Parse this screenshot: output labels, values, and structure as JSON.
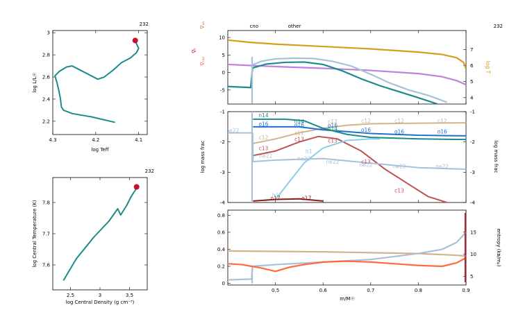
{
  "model_number": "232",
  "chart_data": [
    {
      "id": "hr",
      "type": "line",
      "xlabel": "log Teff",
      "ylabel": "log L/L☉",
      "xlim": [
        4.3,
        4.08
      ],
      "ylim": [
        2.08,
        3.02
      ],
      "xticks": [
        4.3,
        4.2,
        4.1
      ],
      "xticklabels": [
        "4.3",
        "4.2",
        "4.1"
      ],
      "yticks": [
        2.2,
        2.4,
        2.6,
        2.8,
        3.0
      ],
      "yticklabels": [
        "2.2",
        "2.4",
        "2.6",
        "2.8",
        "3"
      ],
      "color": "#1a8a8a",
      "marker_color": "#c8102e",
      "points": [
        [
          4.155,
          2.19
        ],
        [
          4.21,
          2.24
        ],
        [
          4.255,
          2.27
        ],
        [
          4.275,
          2.3
        ],
        [
          4.28,
          2.33
        ],
        [
          4.282,
          2.4
        ],
        [
          4.286,
          2.48
        ],
        [
          4.291,
          2.56
        ],
        [
          4.295,
          2.61
        ],
        [
          4.285,
          2.65
        ],
        [
          4.268,
          2.69
        ],
        [
          4.255,
          2.7
        ],
        [
          4.235,
          2.66
        ],
        [
          4.21,
          2.61
        ],
        [
          4.195,
          2.58
        ],
        [
          4.18,
          2.6
        ],
        [
          4.16,
          2.66
        ],
        [
          4.14,
          2.73
        ],
        [
          4.12,
          2.77
        ],
        [
          4.105,
          2.82
        ],
        [
          4.1,
          2.86
        ],
        [
          4.105,
          2.9
        ],
        [
          4.108,
          2.93
        ]
      ],
      "current": [
        4.108,
        2.93
      ]
    },
    {
      "id": "center",
      "type": "line",
      "xlabel": "log Central Density (g cm⁻³)",
      "ylabel": "log Central Temperature (K)",
      "xlim": [
        2.2,
        3.8
      ],
      "ylim": [
        7.52,
        7.88
      ],
      "xticks": [
        2.5,
        3.0,
        3.5
      ],
      "xticklabels": [
        "2.5",
        "3",
        "3.5"
      ],
      "yticks": [
        7.6,
        7.7,
        7.8
      ],
      "yticklabels": [
        "7.6",
        "7.7",
        "7.8"
      ],
      "color": "#1a8a8a",
      "marker_color": "#c8102e",
      "points": [
        [
          2.38,
          7.55
        ],
        [
          2.6,
          7.62
        ],
        [
          2.9,
          7.69
        ],
        [
          3.15,
          7.74
        ],
        [
          3.3,
          7.78
        ],
        [
          3.35,
          7.76
        ],
        [
          3.45,
          7.79
        ],
        [
          3.53,
          7.82
        ],
        [
          3.6,
          7.84
        ],
        [
          3.62,
          7.85
        ]
      ],
      "current": [
        3.62,
        7.85
      ]
    },
    {
      "id": "profile_top",
      "type": "line",
      "xlim": [
        0.4,
        0.9
      ],
      "ylim_left": [
        -9,
        12
      ],
      "ylim_right": [
        3.6,
        8.2
      ],
      "yticks_left": [
        -5,
        0,
        5,
        10
      ],
      "yticklabels_left": [
        "-5",
        "0",
        "5",
        "10"
      ],
      "yticks_right": [
        4,
        5,
        6,
        7
      ],
      "yticklabels_right": [
        "4",
        "5",
        "6",
        "7"
      ],
      "ylabels_left": [
        {
          "text": "log ρ",
          "color": "#c080e0"
        },
        {
          "text": "log εₙᵤᶜ",
          "color": "#1a8a8a"
        },
        {
          "text": "log εₘₐₓ",
          "color": "#a8c0d8"
        }
      ],
      "ylabel_right": {
        "text": "log T",
        "color": "#d4a017"
      },
      "zone_labels": [
        "cno",
        "other"
      ],
      "zone_label_x": [
        0.455,
        0.54
      ],
      "series": [
        {
          "color": "#d4a017",
          "axis": "right",
          "x": [
            0.4,
            0.45,
            0.5,
            0.6,
            0.7,
            0.8,
            0.85,
            0.88,
            0.895,
            0.9
          ],
          "y": [
            7.6,
            7.45,
            7.35,
            7.2,
            7.05,
            6.85,
            6.7,
            6.5,
            6.2,
            5.8
          ]
        },
        {
          "color": "#c080e0",
          "axis": "left",
          "x": [
            0.4,
            0.45,
            0.5,
            0.6,
            0.7,
            0.8,
            0.85,
            0.88,
            0.9
          ],
          "y": [
            2.3,
            2.0,
            1.7,
            1.2,
            0.6,
            -0.3,
            -1.2,
            -2.3,
            -3.5
          ]
        },
        {
          "color": "#a8c0d8",
          "axis": "left",
          "x": [
            0.452,
            0.47,
            0.5,
            0.54,
            0.58,
            0.62,
            0.66,
            0.7,
            0.74,
            0.78,
            0.82,
            0.86
          ],
          "y": [
            2.2,
            3.2,
            3.9,
            4.1,
            4.0,
            3.2,
            1.8,
            -0.5,
            -3.0,
            -5.0,
            -6.5,
            -8.5
          ]
        },
        {
          "color": "#1a8a8a",
          "axis": "left",
          "x": [
            0.4,
            0.448,
            0.452,
            0.48,
            0.52,
            0.56,
            0.6,
            0.64,
            0.68,
            0.72,
            0.76,
            0.8,
            0.84
          ],
          "y": [
            -4.0,
            -4.3,
            1.3,
            2.4,
            2.9,
            3.0,
            2.3,
            0.5,
            -1.8,
            -3.8,
            -5.5,
            -7.2,
            -9.0
          ]
        },
        {
          "color": "#a8c0d8",
          "axis": "left",
          "x": [
            0.451,
            0.451
          ],
          "y": [
            -8.8,
            4.5
          ]
        }
      ]
    },
    {
      "id": "profile_mid",
      "type": "line",
      "xlim": [
        0.4,
        0.9
      ],
      "ylim": [
        -4,
        -1
      ],
      "yticks": [
        -4,
        -3,
        -2,
        -1
      ],
      "yticklabels": [
        "-4",
        "-3",
        "-2",
        "-1"
      ],
      "ylabel_left": "log mass frac",
      "ylabel_right": "log mass frac",
      "series": [
        {
          "name": "c12",
          "color": "#d2b48c",
          "x": [
            0.453,
            0.5,
            0.55,
            0.6,
            0.65,
            0.7,
            0.8,
            0.9
          ],
          "y": [
            -2.05,
            -1.9,
            -1.7,
            -1.55,
            -1.45,
            -1.4,
            -1.38,
            -1.37
          ]
        },
        {
          "name": "o16",
          "color": "#1f6fd1",
          "x": [
            0.453,
            0.55,
            0.6,
            0.7,
            0.8,
            0.9
          ],
          "y": [
            -1.5,
            -1.5,
            -1.6,
            -1.72,
            -1.78,
            -1.8
          ]
        },
        {
          "name": "n14",
          "color": "#1a8a8a",
          "x": [
            0.453,
            0.52,
            0.56,
            0.6,
            0.65,
            0.7,
            0.8,
            0.9
          ],
          "y": [
            -1.25,
            -1.25,
            -1.3,
            -1.55,
            -1.75,
            -1.85,
            -1.9,
            -1.92
          ]
        },
        {
          "name": "c13",
          "color": "#c05050",
          "x": [
            0.453,
            0.5,
            0.55,
            0.59,
            0.63,
            0.68,
            0.73,
            0.78,
            0.82,
            0.86
          ],
          "y": [
            -2.45,
            -2.3,
            -2.0,
            -1.82,
            -1.9,
            -2.3,
            -2.9,
            -3.4,
            -3.8,
            -4.0
          ]
        },
        {
          "name": "ne22",
          "color": "#a8c0d8",
          "x": [
            0.4,
            0.452,
            0.453,
            0.5,
            0.6,
            0.7,
            0.8,
            0.9
          ],
          "y": [
            -1.7,
            -1.7,
            -2.65,
            -2.6,
            -2.55,
            -2.7,
            -2.85,
            -2.9
          ]
        },
        {
          "name": "h1",
          "color": "#87ceeb",
          "x": [
            0.5,
            0.53,
            0.56,
            0.6,
            0.65,
            0.7,
            0.72
          ],
          "y": [
            -3.9,
            -3.3,
            -2.7,
            -2.2,
            -1.95,
            -1.9,
            -1.9
          ]
        },
        {
          "name": "o17",
          "color": "#8b1a1a",
          "x": [
            0.453,
            0.5,
            0.55,
            0.6
          ],
          "y": [
            -3.95,
            -3.9,
            -3.88,
            -3.95
          ]
        },
        {
          "name": "",
          "color": "#a8c0d8",
          "x": [
            0.451,
            0.451
          ],
          "y": [
            -4.0,
            -1.0
          ]
        }
      ],
      "labels": [
        {
          "text": "n14",
          "x": 0.475,
          "y": -1.12,
          "color": "#1a8a8a"
        },
        {
          "text": "o16",
          "x": 0.475,
          "y": -1.4,
          "color": "#1f6fd1"
        },
        {
          "text": "ne22",
          "x": 0.41,
          "y": -1.62,
          "color": "#a8c0d8"
        },
        {
          "text": "c12",
          "x": 0.475,
          "y": -1.85,
          "color": "#d2b48c"
        },
        {
          "text": "c13",
          "x": 0.475,
          "y": -2.2,
          "color": "#c05050"
        },
        {
          "text": "ne22",
          "x": 0.48,
          "y": -2.45,
          "color": "#a8c0d8"
        },
        {
          "text": "n14",
          "x": 0.55,
          "y": -1.32,
          "color": "#1a8a8a"
        },
        {
          "text": "o16",
          "x": 0.55,
          "y": -1.43,
          "color": "#1f6fd1"
        },
        {
          "text": "c12",
          "x": 0.55,
          "y": -1.7,
          "color": "#d2b48c"
        },
        {
          "text": "c13",
          "x": 0.55,
          "y": -1.9,
          "color": "#c05050"
        },
        {
          "text": "h1",
          "x": 0.57,
          "y": -2.3,
          "color": "#87ceeb"
        },
        {
          "text": "ne22",
          "x": 0.56,
          "y": -2.55,
          "color": "#a8c0d8"
        },
        {
          "text": "h1",
          "x": 0.5,
          "y": -3.75,
          "color": "#87ceeb"
        },
        {
          "text": "o17",
          "x": 0.5,
          "y": -3.85,
          "color": "#8b1a1a"
        },
        {
          "text": "o17",
          "x": 0.565,
          "y": -3.85,
          "color": "#8b1a1a"
        },
        {
          "text": "n14",
          "x": 0.62,
          "y": -1.55,
          "color": "#1a8a8a"
        },
        {
          "text": "c12",
          "x": 0.62,
          "y": -1.32,
          "color": "#d2b48c"
        },
        {
          "text": "o16",
          "x": 0.62,
          "y": -1.45,
          "color": "#1f6fd1"
        },
        {
          "text": "c13",
          "x": 0.62,
          "y": -1.95,
          "color": "#c05050"
        },
        {
          "text": "ne22",
          "x": 0.62,
          "y": -2.65,
          "color": "#a8c0d8"
        },
        {
          "text": "c12",
          "x": 0.69,
          "y": -1.3,
          "color": "#d2b48c"
        },
        {
          "text": "o16",
          "x": 0.69,
          "y": -1.6,
          "color": "#1f6fd1"
        },
        {
          "text": "c13",
          "x": 0.69,
          "y": -2.65,
          "color": "#c05050"
        },
        {
          "text": "ne22",
          "x": 0.69,
          "y": -2.75,
          "color": "#a8c0d8"
        },
        {
          "text": "c12",
          "x": 0.76,
          "y": -1.3,
          "color": "#d2b48c"
        },
        {
          "text": "o16",
          "x": 0.76,
          "y": -1.65,
          "color": "#1f6fd1"
        },
        {
          "text": "ne22",
          "x": 0.76,
          "y": -2.8,
          "color": "#a8c0d8"
        },
        {
          "text": "c13",
          "x": 0.76,
          "y": -3.6,
          "color": "#c05050"
        },
        {
          "text": "c12",
          "x": 0.85,
          "y": -1.3,
          "color": "#d2b48c"
        },
        {
          "text": "o16",
          "x": 0.85,
          "y": -1.65,
          "color": "#1f6fd1"
        },
        {
          "text": "ne22",
          "x": 0.85,
          "y": -2.8,
          "color": "#a8c0d8"
        }
      ]
    },
    {
      "id": "profile_bot",
      "type": "line",
      "xlabel": "m/M☉",
      "xlim": [
        0.4,
        0.9
      ],
      "ylim": [
        -0.02,
        0.86
      ],
      "ylim_right": [
        3,
        20
      ],
      "xticks": [
        0.5,
        0.6,
        0.7,
        0.8,
        0.9
      ],
      "xticklabels": [
        "0.5",
        "0.6",
        "0.7",
        "0.8",
        "0.9"
      ],
      "yticks": [
        0.0,
        0.2,
        0.4,
        0.6,
        0.8
      ],
      "yticklabels": [
        "0",
        "0.2",
        "0.4",
        "0.6",
        "0.8"
      ],
      "yticks_right": [
        5,
        10,
        15
      ],
      "yticklabels_right": [
        "5",
        "10",
        "15"
      ],
      "ylabels_left": [
        {
          "text": "∇ₐₔ",
          "color": "#c87850"
        },
        {
          "text": "∇ₜ",
          "color": "#c8102e"
        },
        {
          "text": "∇ᵣₐₔ",
          "color": "#ff6a3d"
        }
      ],
      "ylabel_right": "entropy (kʙ/mₚ)",
      "series": [
        {
          "color": "#d2b48c",
          "axis": "left",
          "x": [
            0.4,
            0.5,
            0.6,
            0.7,
            0.8,
            0.88,
            0.9
          ],
          "y": [
            0.38,
            0.375,
            0.37,
            0.36,
            0.35,
            0.33,
            0.32
          ]
        },
        {
          "color": "#a8c0d8",
          "axis": "left",
          "x": [
            0.4,
            0.45,
            0.452,
            0.5,
            0.6,
            0.7,
            0.8,
            0.85,
            0.88,
            0.9
          ],
          "y": [
            0.04,
            0.05,
            0.2,
            0.22,
            0.25,
            0.28,
            0.35,
            0.4,
            0.48,
            0.6
          ]
        },
        {
          "color": "#ff6a3d",
          "axis": "left",
          "x": [
            0.4,
            0.43,
            0.45,
            0.47,
            0.5,
            0.53,
            0.56,
            0.6,
            0.65,
            0.7,
            0.75,
            0.8,
            0.85,
            0.88,
            0.9
          ],
          "y": [
            0.23,
            0.22,
            0.2,
            0.18,
            0.14,
            0.19,
            0.22,
            0.25,
            0.26,
            0.25,
            0.23,
            0.21,
            0.2,
            0.24,
            0.3
          ]
        },
        {
          "color": "#a8c0d8",
          "axis": "left",
          "x": [
            0.451,
            0.451
          ],
          "y": [
            0.0,
            0.17
          ]
        }
      ]
    }
  ]
}
